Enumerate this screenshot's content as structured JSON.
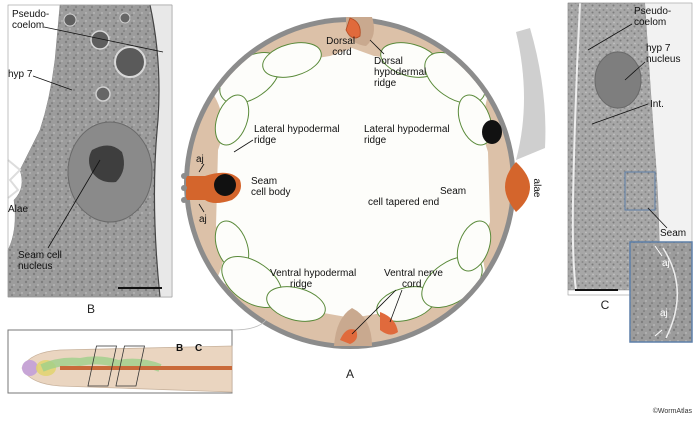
{
  "colors": {
    "muscle_fill": "#fdfdfa",
    "muscle_stroke": "#5a8a3a",
    "hypodermis": "#dcc1a8",
    "hypodermis_dark": "#c9a98f",
    "cuticle": "#8c8c8c",
    "seam": "#d4652c",
    "nucleus": "#111111",
    "em_bg": "#9a9a9a",
    "worm_body": "#ead5c0",
    "worm_gut": "#c96a3a",
    "worm_pharynx": "#9fd08a"
  },
  "panels": {
    "a": {
      "letter": "A",
      "labels": {
        "dorsal_cord": [
          "Dorsal",
          "cord"
        ],
        "dorsal_ridge": [
          "Dorsal",
          "hypodermal",
          "ridge"
        ],
        "lateral_left": [
          "Lateral hypodermal",
          "ridge"
        ],
        "lateral_right": [
          "Lateral hypodermal",
          "ridge"
        ],
        "seam_body": [
          "Seam",
          "cell body"
        ],
        "seam_tapered": [
          "Seam",
          "cell tapered end"
        ],
        "aj_top": "aj",
        "aj_bottom": "aj",
        "alae": "alae",
        "ventral_ridge": [
          "Ventral hypodermal",
          "ridge"
        ],
        "ventral_cord": [
          "Ventral nerve",
          "cord"
        ]
      }
    },
    "b": {
      "letter": "B",
      "labels": {
        "pseudocoelom": [
          "Pseudo-",
          "coelom"
        ],
        "hyp7": "hyp 7",
        "alae": "Alae",
        "seam_nucleus": [
          "Seam cell",
          "nucleus"
        ]
      }
    },
    "c": {
      "letter": "C",
      "labels": {
        "pseudocoelom": [
          "Pseudo-",
          "coelom"
        ],
        "hyp7_nucleus": [
          "hyp 7",
          "nucleus"
        ],
        "int": "Int.",
        "seam": "Seam",
        "aj_top": "aj",
        "aj_bottom": "aj"
      }
    },
    "inset": {
      "marker_b": "B",
      "marker_c": "C"
    }
  },
  "credit": "©WormAtlas"
}
